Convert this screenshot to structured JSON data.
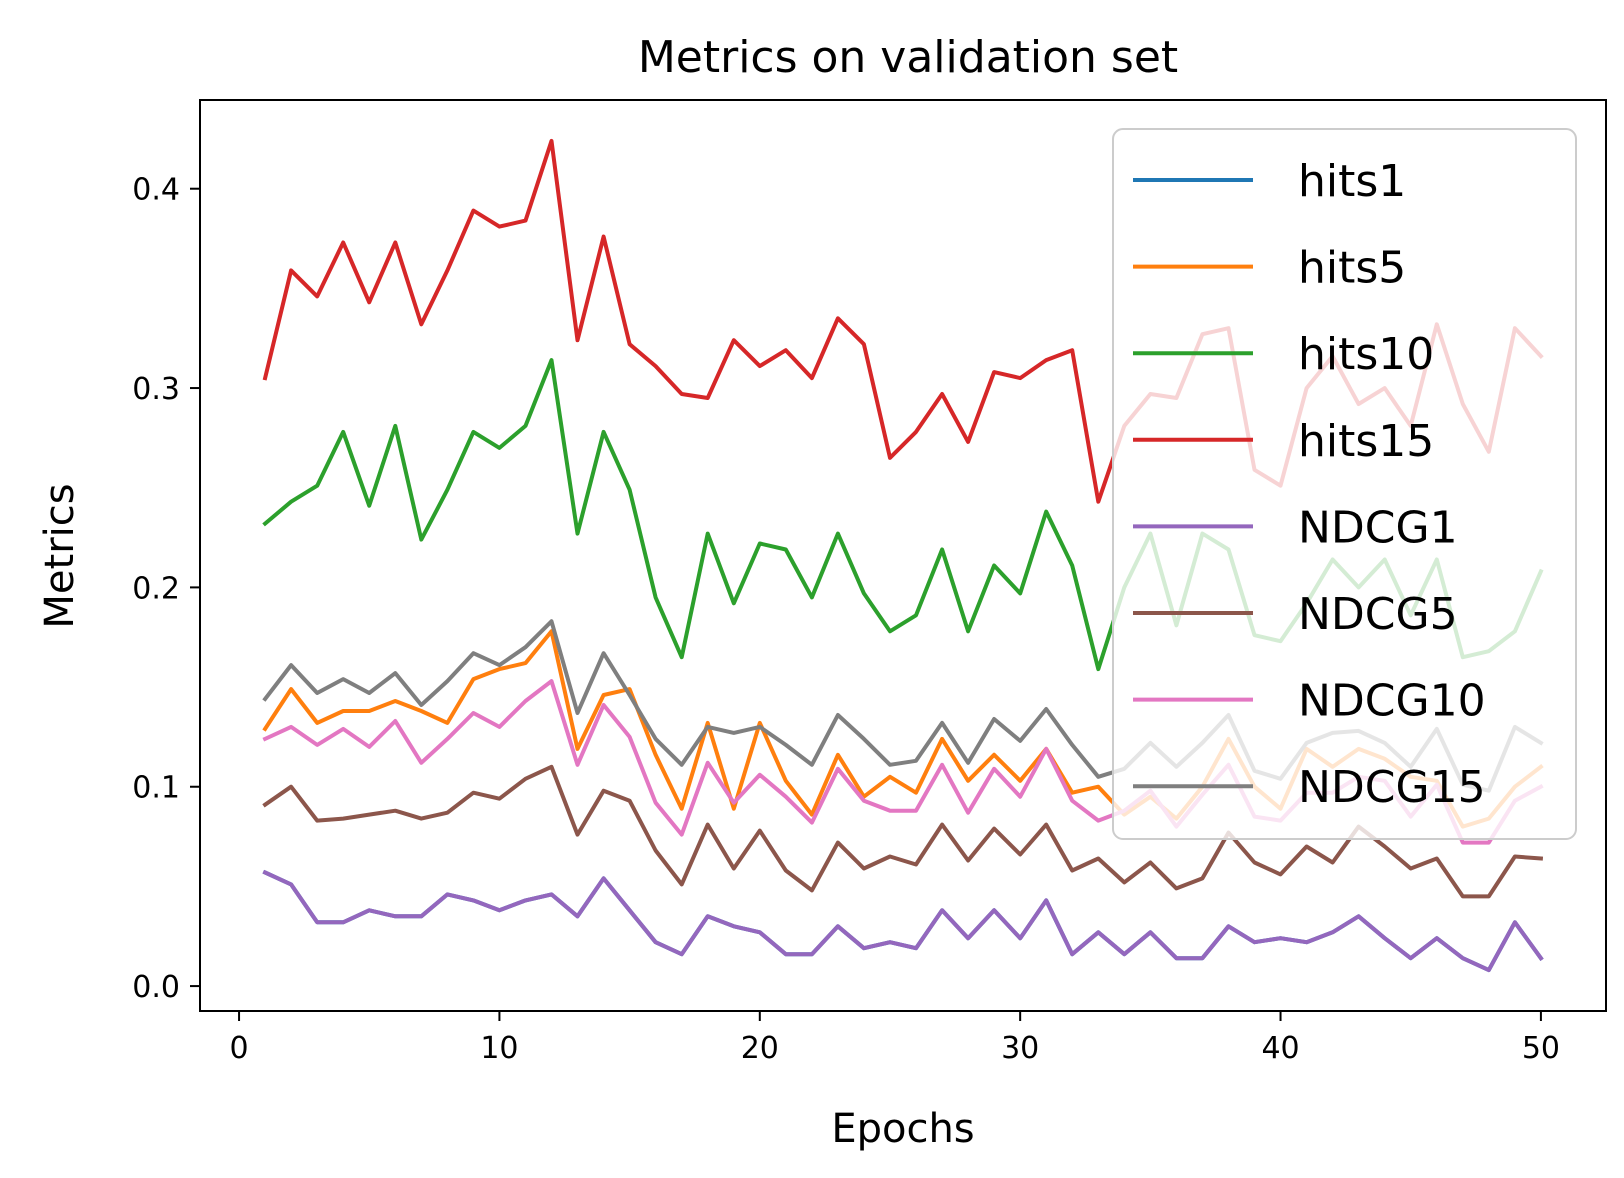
{
  "chart_data": {
    "type": "line",
    "title": "Metrics on validation set",
    "xlabel": "Epochs",
    "ylabel": "Metrics",
    "xlim": [
      -1.5,
      52.5
    ],
    "ylim": [
      -0.0125,
      0.4445
    ],
    "xticks": [
      0,
      10,
      20,
      30,
      40,
      50
    ],
    "yticks": [
      0.0,
      0.1,
      0.2,
      0.3,
      0.4
    ],
    "xtick_labels": [
      "0",
      "10",
      "20",
      "30",
      "40",
      "50"
    ],
    "ytick_labels": [
      "0.0",
      "0.1",
      "0.2",
      "0.3",
      "0.4"
    ],
    "grid": false,
    "legend_position": "top-right",
    "x": [
      1,
      2,
      3,
      4,
      5,
      6,
      7,
      8,
      9,
      10,
      11,
      12,
      13,
      14,
      15,
      16,
      17,
      18,
      19,
      20,
      21,
      22,
      23,
      24,
      25,
      26,
      27,
      28,
      29,
      30,
      31,
      32,
      33,
      34,
      35,
      36,
      37,
      38,
      39,
      40,
      41,
      42,
      43,
      44,
      45,
      46,
      47,
      48,
      49,
      50
    ],
    "series": [
      {
        "name": "hits1",
        "color": "#1f77b4",
        "values": [
          0.057,
          0.051,
          0.032,
          0.032,
          0.038,
          0.035,
          0.035,
          0.046,
          0.043,
          0.038,
          0.043,
          0.046,
          0.035,
          0.054,
          0.038,
          0.022,
          0.016,
          0.035,
          0.03,
          0.027,
          0.016,
          0.016,
          0.03,
          0.019,
          0.022,
          0.019,
          0.038,
          0.024,
          0.038,
          0.024,
          0.043,
          0.016,
          0.027,
          0.016,
          0.027,
          0.014,
          0.014,
          0.03,
          0.022,
          0.024,
          0.022,
          0.027,
          0.035,
          0.024,
          0.014,
          0.024,
          0.014,
          0.008,
          0.032,
          0.014
        ]
      },
      {
        "name": "hits5",
        "color": "#ff7f0e",
        "values": [
          0.129,
          0.149,
          0.132,
          0.138,
          0.138,
          0.143,
          0.138,
          0.132,
          0.154,
          0.159,
          0.162,
          0.178,
          0.119,
          0.146,
          0.149,
          0.116,
          0.089,
          0.132,
          0.089,
          0.132,
          0.103,
          0.086,
          0.116,
          0.095,
          0.105,
          0.097,
          0.124,
          0.103,
          0.116,
          0.103,
          0.119,
          0.097,
          0.1,
          0.086,
          0.095,
          0.084,
          0.1,
          0.124,
          0.1,
          0.089,
          0.119,
          0.11,
          0.119,
          0.114,
          0.105,
          0.103,
          0.08,
          0.084,
          0.1,
          0.11
        ]
      },
      {
        "name": "hits10",
        "color": "#2ca02c",
        "values": [
          0.232,
          0.243,
          0.251,
          0.278,
          0.241,
          0.281,
          0.224,
          0.249,
          0.278,
          0.27,
          0.281,
          0.314,
          0.227,
          0.278,
          0.249,
          0.195,
          0.165,
          0.227,
          0.192,
          0.222,
          0.219,
          0.195,
          0.227,
          0.197,
          0.178,
          0.186,
          0.219,
          0.178,
          0.211,
          0.197,
          0.238,
          0.211,
          0.159,
          0.2,
          0.227,
          0.181,
          0.227,
          0.219,
          0.176,
          0.173,
          0.192,
          0.214,
          0.2,
          0.214,
          0.186,
          0.214,
          0.165,
          0.168,
          0.178,
          0.208
        ]
      },
      {
        "name": "hits15",
        "color": "#d62728",
        "values": [
          0.305,
          0.359,
          0.346,
          0.373,
          0.343,
          0.373,
          0.332,
          0.359,
          0.389,
          0.381,
          0.384,
          0.424,
          0.324,
          0.376,
          0.322,
          0.311,
          0.297,
          0.295,
          0.324,
          0.311,
          0.319,
          0.305,
          0.335,
          0.322,
          0.265,
          0.278,
          0.297,
          0.273,
          0.308,
          0.305,
          0.314,
          0.319,
          0.243,
          0.281,
          0.297,
          0.295,
          0.327,
          0.33,
          0.259,
          0.251,
          0.3,
          0.316,
          0.292,
          0.3,
          0.281,
          0.332,
          0.292,
          0.268,
          0.33,
          0.316
        ]
      },
      {
        "name": "NDCG1",
        "color": "#9467bd",
        "values": [
          0.057,
          0.051,
          0.032,
          0.032,
          0.038,
          0.035,
          0.035,
          0.046,
          0.043,
          0.038,
          0.043,
          0.046,
          0.035,
          0.054,
          0.038,
          0.022,
          0.016,
          0.035,
          0.03,
          0.027,
          0.016,
          0.016,
          0.03,
          0.019,
          0.022,
          0.019,
          0.038,
          0.024,
          0.038,
          0.024,
          0.043,
          0.016,
          0.027,
          0.016,
          0.027,
          0.014,
          0.014,
          0.03,
          0.022,
          0.024,
          0.022,
          0.027,
          0.035,
          0.024,
          0.014,
          0.024,
          0.014,
          0.008,
          0.032,
          0.014
        ]
      },
      {
        "name": "NDCG5",
        "color": "#8c564b",
        "values": [
          0.091,
          0.1,
          0.083,
          0.084,
          0.086,
          0.088,
          0.084,
          0.087,
          0.097,
          0.094,
          0.104,
          0.11,
          0.076,
          0.098,
          0.093,
          0.068,
          0.051,
          0.081,
          0.059,
          0.078,
          0.058,
          0.048,
          0.072,
          0.059,
          0.065,
          0.061,
          0.081,
          0.063,
          0.079,
          0.066,
          0.081,
          0.058,
          0.064,
          0.052,
          0.062,
          0.049,
          0.054,
          0.077,
          0.062,
          0.056,
          0.07,
          0.062,
          0.08,
          0.07,
          0.059,
          0.064,
          0.045,
          0.045,
          0.065,
          0.064
        ]
      },
      {
        "name": "NDCG10",
        "color": "#e377c2",
        "values": [
          0.124,
          0.13,
          0.121,
          0.129,
          0.12,
          0.133,
          0.112,
          0.124,
          0.137,
          0.13,
          0.143,
          0.153,
          0.111,
          0.141,
          0.125,
          0.092,
          0.076,
          0.112,
          0.092,
          0.106,
          0.095,
          0.082,
          0.109,
          0.093,
          0.088,
          0.088,
          0.111,
          0.087,
          0.109,
          0.095,
          0.119,
          0.093,
          0.083,
          0.088,
          0.098,
          0.08,
          0.096,
          0.111,
          0.085,
          0.083,
          0.097,
          0.097,
          0.105,
          0.103,
          0.085,
          0.101,
          0.072,
          0.072,
          0.093,
          0.1
        ]
      },
      {
        "name": "NDCG15",
        "color": "#7f7f7f",
        "values": [
          0.144,
          0.161,
          0.147,
          0.154,
          0.147,
          0.157,
          0.141,
          0.153,
          0.167,
          0.161,
          0.17,
          0.183,
          0.137,
          0.167,
          0.146,
          0.124,
          0.111,
          0.13,
          0.127,
          0.13,
          0.121,
          0.111,
          0.136,
          0.124,
          0.111,
          0.113,
          0.132,
          0.112,
          0.134,
          0.123,
          0.139,
          0.121,
          0.105,
          0.109,
          0.122,
          0.11,
          0.122,
          0.136,
          0.108,
          0.104,
          0.122,
          0.127,
          0.128,
          0.122,
          0.11,
          0.129,
          0.101,
          0.098,
          0.13,
          0.122
        ]
      }
    ]
  }
}
